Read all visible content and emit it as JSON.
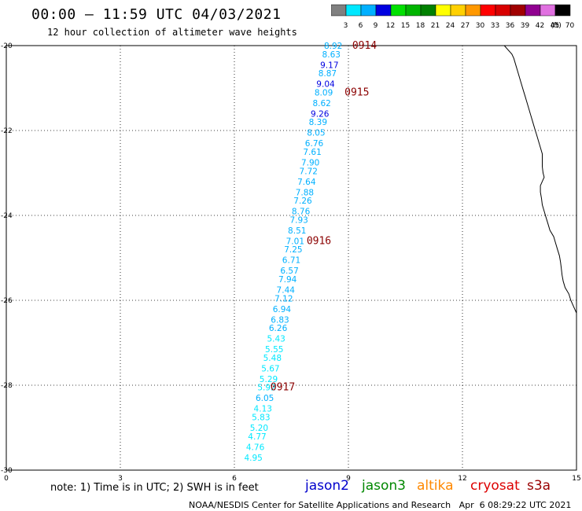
{
  "title": "00:00 – 11:59 UTC 04/03/2021",
  "subtitle": "12 hour collection of altimeter wave heights",
  "colorbar": {
    "labels": [
      "3",
      "6",
      "9",
      "12",
      "15",
      "18",
      "21",
      "24",
      "27",
      "30",
      "33",
      "36",
      "39",
      "42",
      "45",
      "70"
    ],
    "unit": "(ft)",
    "colors": [
      "#808080",
      "#00e8ff",
      "#00b0ff",
      "#0000e0",
      "#00e000",
      "#00b400",
      "#008000",
      "#ffff00",
      "#ffd000",
      "#ff9800",
      "#ff0000",
      "#d80000",
      "#a00000",
      "#900090",
      "#e070e0",
      "#000000"
    ]
  },
  "note": "note: 1) Time is in UTC; 2) SWH is in feet",
  "credit": "NOAA/NESDIS Center for Satellite Applications and Research   Apr  6 08:29:22 UTC 2021",
  "legend": [
    {
      "label": "jason2",
      "color": "#0000cc"
    },
    {
      "label": "jason3",
      "color": "#008800"
    },
    {
      "label": "altika",
      "color": "#ff8800"
    },
    {
      "label": "cryosat",
      "color": "#dd0000"
    },
    {
      "label": "s3a",
      "color": "#990000"
    }
  ],
  "axes": {
    "x_ticks": [
      "0",
      "3",
      "6",
      "9",
      "12",
      "15"
    ],
    "y_ticks": [
      "-20",
      "-22",
      "-24",
      "-26",
      "-28",
      "-30"
    ]
  },
  "chart_data": {
    "type": "scatter",
    "xlim": [
      0,
      15
    ],
    "ylim": [
      -30,
      -20
    ],
    "grid": true,
    "points": [
      {
        "x": 8.6,
        "y": -20.0,
        "v": "8.92",
        "c": "#00b0ff"
      },
      {
        "x": 8.55,
        "y": -20.2,
        "v": "8.63",
        "c": "#00b0ff"
      },
      {
        "x": 8.5,
        "y": -20.45,
        "v": "9.17",
        "c": "#0000e0"
      },
      {
        "x": 8.45,
        "y": -20.65,
        "v": "8.87",
        "c": "#00b0ff"
      },
      {
        "x": 8.4,
        "y": -20.9,
        "v": "9.04",
        "c": "#0000e0"
      },
      {
        "x": 8.35,
        "y": -21.1,
        "v": "8.09",
        "c": "#00b0ff"
      },
      {
        "x": 8.3,
        "y": -21.35,
        "v": "8.62",
        "c": "#00b0ff"
      },
      {
        "x": 8.25,
        "y": -21.6,
        "v": "9.26",
        "c": "#0000e0"
      },
      {
        "x": 8.2,
        "y": -21.8,
        "v": "8.39",
        "c": "#00b0ff"
      },
      {
        "x": 8.15,
        "y": -22.05,
        "v": "8.05",
        "c": "#00b0ff"
      },
      {
        "x": 8.1,
        "y": -22.3,
        "v": "6.76",
        "c": "#00b0ff"
      },
      {
        "x": 8.05,
        "y": -22.5,
        "v": "7.61",
        "c": "#00b0ff"
      },
      {
        "x": 8.0,
        "y": -22.75,
        "v": "7.90",
        "c": "#00b0ff"
      },
      {
        "x": 7.95,
        "y": -22.95,
        "v": "7.72",
        "c": "#00b0ff"
      },
      {
        "x": 7.9,
        "y": -23.2,
        "v": "7.64",
        "c": "#00b0ff"
      },
      {
        "x": 7.85,
        "y": -23.45,
        "v": "7.88",
        "c": "#00b0ff"
      },
      {
        "x": 7.8,
        "y": -23.65,
        "v": "7.26",
        "c": "#00b0ff"
      },
      {
        "x": 7.75,
        "y": -23.9,
        "v": "8.76",
        "c": "#00b0ff"
      },
      {
        "x": 7.7,
        "y": -24.1,
        "v": "7.93",
        "c": "#00b0ff"
      },
      {
        "x": 7.65,
        "y": -24.35,
        "v": "8.51",
        "c": "#00b0ff"
      },
      {
        "x": 7.6,
        "y": -24.6,
        "v": "7.01",
        "c": "#00b0ff"
      },
      {
        "x": 7.55,
        "y": -24.8,
        "v": "7.25",
        "c": "#00b0ff"
      },
      {
        "x": 7.5,
        "y": -25.05,
        "v": "6.71",
        "c": "#00b0ff"
      },
      {
        "x": 7.45,
        "y": -25.3,
        "v": "6.57",
        "c": "#00b0ff"
      },
      {
        "x": 7.4,
        "y": -25.5,
        "v": "7.94",
        "c": "#00b0ff"
      },
      {
        "x": 7.35,
        "y": -25.75,
        "v": "7.44",
        "c": "#00b0ff"
      },
      {
        "x": 7.3,
        "y": -25.95,
        "v": "7.12",
        "c": "#00b0ff"
      },
      {
        "x": 7.25,
        "y": -26.2,
        "v": "6.94",
        "c": "#00b0ff"
      },
      {
        "x": 7.2,
        "y": -26.45,
        "v": "6.83",
        "c": "#00b0ff"
      },
      {
        "x": 7.15,
        "y": -26.65,
        "v": "6.26",
        "c": "#00b0ff"
      },
      {
        "x": 7.1,
        "y": -26.9,
        "v": "5.43",
        "c": "#00e8ff"
      },
      {
        "x": 7.05,
        "y": -27.15,
        "v": "5.55",
        "c": "#00e8ff"
      },
      {
        "x": 7.0,
        "y": -27.35,
        "v": "5.48",
        "c": "#00e8ff"
      },
      {
        "x": 6.95,
        "y": -27.6,
        "v": "5.67",
        "c": "#00e8ff"
      },
      {
        "x": 6.9,
        "y": -27.85,
        "v": "5.29",
        "c": "#00e8ff"
      },
      {
        "x": 6.85,
        "y": -28.05,
        "v": "5.92",
        "c": "#00e8ff"
      },
      {
        "x": 6.8,
        "y": -28.3,
        "v": "6.05",
        "c": "#00b0ff"
      },
      {
        "x": 6.75,
        "y": -28.55,
        "v": "4.13",
        "c": "#00e8ff"
      },
      {
        "x": 6.7,
        "y": -28.75,
        "v": "5.83",
        "c": "#00e8ff"
      },
      {
        "x": 6.65,
        "y": -29.0,
        "v": "5.20",
        "c": "#00e8ff"
      },
      {
        "x": 6.6,
        "y": -29.2,
        "v": "4.77",
        "c": "#00e8ff"
      },
      {
        "x": 6.55,
        "y": -29.45,
        "v": "4.76",
        "c": "#00e8ff"
      },
      {
        "x": 6.5,
        "y": -29.7,
        "v": "4.95",
        "c": "#00e8ff"
      }
    ],
    "time_labels": [
      {
        "label": "0914",
        "x": 9.1,
        "y": -20.0
      },
      {
        "label": "0915",
        "x": 8.9,
        "y": -21.1
      },
      {
        "label": "0916",
        "x": 7.9,
        "y": -24.6
      },
      {
        "label": "0917",
        "x": 6.95,
        "y": -28.05
      }
    ],
    "coastline": [
      [
        13.1,
        -20.0
      ],
      [
        13.2,
        -20.1
      ],
      [
        13.3,
        -20.2
      ],
      [
        13.35,
        -20.3
      ],
      [
        13.4,
        -20.45
      ],
      [
        13.45,
        -20.6
      ],
      [
        13.5,
        -20.75
      ],
      [
        13.55,
        -20.9
      ],
      [
        13.6,
        -21.05
      ],
      [
        13.65,
        -21.2
      ],
      [
        13.7,
        -21.35
      ],
      [
        13.75,
        -21.5
      ],
      [
        13.8,
        -21.65
      ],
      [
        13.85,
        -21.8
      ],
      [
        13.9,
        -21.95
      ],
      [
        13.95,
        -22.1
      ],
      [
        14.0,
        -22.25
      ],
      [
        14.05,
        -22.4
      ],
      [
        14.1,
        -22.55
      ],
      [
        14.1,
        -22.7
      ],
      [
        14.1,
        -22.85
      ],
      [
        14.12,
        -23.0
      ],
      [
        14.15,
        -23.1
      ],
      [
        14.1,
        -23.2
      ],
      [
        14.05,
        -23.3
      ],
      [
        14.05,
        -23.45
      ],
      [
        14.08,
        -23.6
      ],
      [
        14.1,
        -23.75
      ],
      [
        14.15,
        -23.9
      ],
      [
        14.2,
        -24.05
      ],
      [
        14.25,
        -24.2
      ],
      [
        14.3,
        -24.35
      ],
      [
        14.4,
        -24.5
      ],
      [
        14.45,
        -24.65
      ],
      [
        14.5,
        -24.8
      ],
      [
        14.55,
        -24.95
      ],
      [
        14.58,
        -25.1
      ],
      [
        14.6,
        -25.25
      ],
      [
        14.62,
        -25.4
      ],
      [
        14.65,
        -25.55
      ],
      [
        14.7,
        -25.7
      ],
      [
        14.8,
        -25.85
      ],
      [
        14.85,
        -26.0
      ],
      [
        14.9,
        -26.1
      ],
      [
        14.95,
        -26.2
      ],
      [
        15.0,
        -26.3
      ]
    ]
  }
}
